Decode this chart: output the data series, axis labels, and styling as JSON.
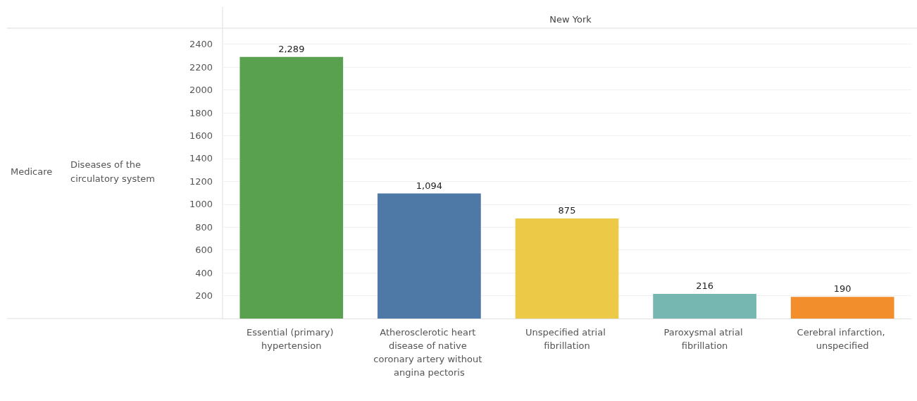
{
  "chart_data": {
    "type": "bar",
    "title": "New York",
    "annotations": [
      "Medicare",
      "Diseases of the circulatory system"
    ],
    "categories": [
      "Essential (primary) hypertension",
      "Atherosclerotic heart disease of native coronary artery without angina pectoris",
      "Unspecified atrial fibrillation",
      "Paroxysmal atrial fibrillation",
      "Cerebral infarction, unspecified"
    ],
    "values": [
      2289,
      1094,
      875,
      216,
      190
    ],
    "colors": [
      "#59a14f",
      "#4e79a7",
      "#edc948",
      "#76b7b2",
      "#f28e2b"
    ],
    "value_labels": [
      "2,289",
      "1,094",
      "875",
      "216",
      "190"
    ],
    "ylim": [
      0,
      2540
    ],
    "yticks": [
      200,
      400,
      600,
      800,
      1000,
      1200,
      1400,
      1600,
      1800,
      2000,
      2200,
      2400
    ],
    "grid": "y"
  }
}
